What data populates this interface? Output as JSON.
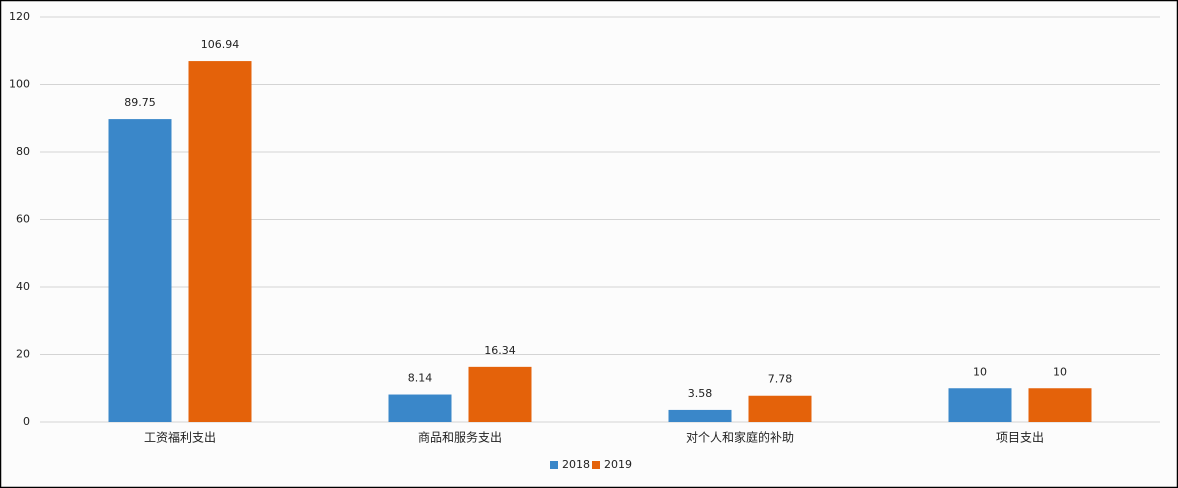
{
  "chart_data": {
    "type": "bar",
    "categories": [
      "工资福利支出",
      "商品和服务支出",
      "对个人和家庭的补助",
      "项目支出"
    ],
    "series": [
      {
        "name": "2018",
        "color": "#3a87c9",
        "values": [
          89.75,
          8.14,
          3.58,
          10
        ]
      },
      {
        "name": "2019",
        "color": "#e4620a",
        "values": [
          106.94,
          16.34,
          7.78,
          10
        ]
      }
    ],
    "ylim": [
      0,
      120
    ],
    "yticks": [
      0,
      20,
      40,
      60,
      80,
      100,
      120
    ],
    "grid": true,
    "legend": "bottom"
  }
}
